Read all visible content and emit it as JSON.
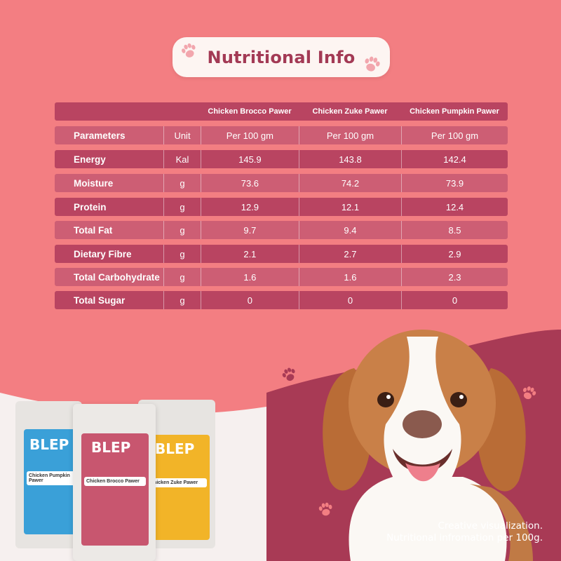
{
  "title": "Nutritional Info",
  "products": [
    "Chicken Brocco Pawer",
    "Chicken Zuke Pawer",
    "Chicken Pumpkin Pawer"
  ],
  "header": {
    "parameters": "Parameters",
    "unit": "Unit",
    "per": [
      "Per 100 gm",
      "Per 100 gm",
      "Per 100 gm"
    ]
  },
  "rows": [
    {
      "param": "Energy",
      "unit": "Kal",
      "values": [
        "145.9",
        "143.8",
        "142.4"
      ]
    },
    {
      "param": "Moisture",
      "unit": "g",
      "values": [
        "73.6",
        "74.2",
        "73.9"
      ]
    },
    {
      "param": "Protein",
      "unit": "g",
      "values": [
        "12.9",
        "12.1",
        "12.4"
      ]
    },
    {
      "param": "Total Fat",
      "unit": "g",
      "values": [
        "9.7",
        "9.4",
        "8.5"
      ]
    },
    {
      "param": "Dietary Fibre",
      "unit": "g",
      "values": [
        "2.1",
        "2.7",
        "2.9"
      ]
    },
    {
      "param": "Total Carbohydrate",
      "unit": "g",
      "values": [
        "1.6",
        "1.6",
        "2.3"
      ]
    },
    {
      "param": "Total Sugar",
      "unit": "g",
      "values": [
        "0",
        "0",
        "0"
      ]
    }
  ],
  "caption": {
    "line1": "Creative visualization.",
    "line2": "Nutritional infromation per 100g."
  },
  "packs": [
    {
      "brand": "BLEP",
      "name": "Chicken Pumpkin Pawer",
      "color": "#3aa0d8"
    },
    {
      "brand": "BLEP",
      "name": "Chicken Brocco Pawer",
      "color": "#c8566f"
    },
    {
      "brand": "BLEP",
      "name": "Chicken Zuke Pawer",
      "color": "#f2b428"
    }
  ],
  "colors": {
    "background": "#f37e82",
    "wave": "#a83a55",
    "row_dark": "#b94461",
    "row_light": "#cd5e74",
    "title_text": "#a33a55"
  }
}
